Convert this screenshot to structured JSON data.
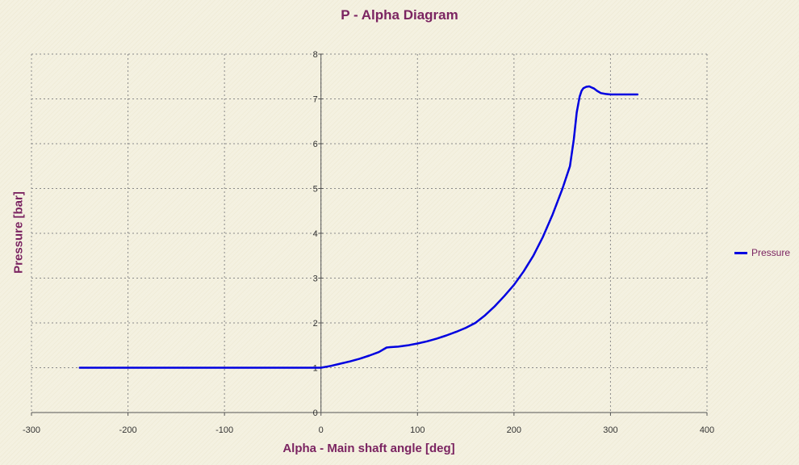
{
  "chart_data": {
    "type": "line",
    "title": "P - Alpha Diagram",
    "xlabel": "Alpha - Main shaft angle [deg]",
    "ylabel": "Pressure [bar]",
    "xlim": [
      -300,
      400
    ],
    "ylim": [
      0,
      8
    ],
    "xticks": [
      -300,
      -200,
      -100,
      0,
      100,
      200,
      300,
      400
    ],
    "yticks": [
      0,
      1,
      2,
      3,
      4,
      5,
      6,
      7,
      8
    ],
    "grid": true,
    "legend_position": "right",
    "series": [
      {
        "name": "Pressure",
        "color": "#0000e0",
        "x": [
          -250,
          -200,
          -100,
          -50,
          0,
          10,
          20,
          30,
          40,
          50,
          60,
          68,
          72,
          80,
          90,
          100,
          110,
          120,
          130,
          140,
          150,
          160,
          170,
          180,
          190,
          200,
          210,
          220,
          230,
          240,
          250,
          258,
          262,
          265,
          268,
          270,
          272,
          275,
          278,
          280,
          283,
          286,
          290,
          295,
          300,
          310,
          320,
          328
        ],
        "y": [
          1.0,
          1.0,
          1.0,
          1.0,
          1.0,
          1.04,
          1.09,
          1.14,
          1.2,
          1.27,
          1.35,
          1.45,
          1.46,
          1.47,
          1.5,
          1.54,
          1.59,
          1.65,
          1.72,
          1.8,
          1.89,
          2.0,
          2.17,
          2.37,
          2.6,
          2.85,
          3.15,
          3.5,
          3.92,
          4.42,
          4.98,
          5.5,
          6.1,
          6.7,
          7.05,
          7.18,
          7.24,
          7.27,
          7.28,
          7.26,
          7.23,
          7.18,
          7.13,
          7.11,
          7.1,
          7.1,
          7.1,
          7.1
        ]
      }
    ]
  }
}
